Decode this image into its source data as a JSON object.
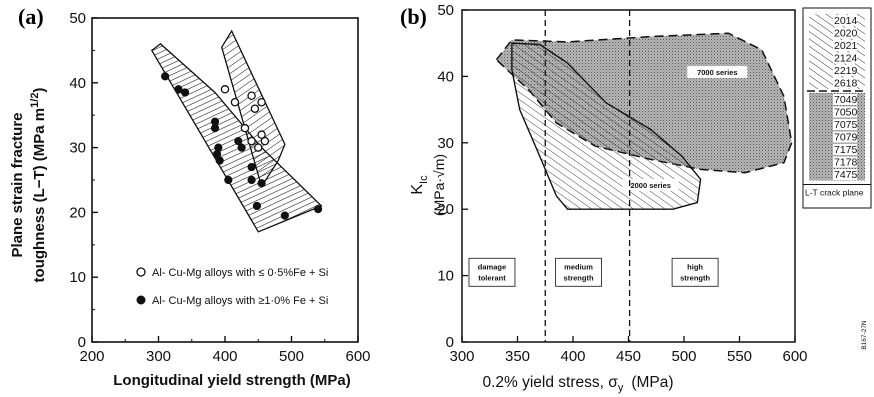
{
  "panel_labels": {
    "a": "(a)",
    "b": "(b)"
  },
  "chart_data": [
    {
      "type": "scatter",
      "xlabel": "Longitudinal yield strength (MPa)",
      "ylabel_line1": "Plane strain fracture",
      "ylabel_line2": "toughness (L−T) (MPa m",
      "ylabel_exp": "1/2",
      "ylabel_close": ")",
      "xlim": [
        200,
        600
      ],
      "ylim": [
        0,
        50
      ],
      "xticks": [
        "200",
        "300",
        "400",
        "500",
        "600"
      ],
      "yticks": [
        "0",
        "10",
        "20",
        "30",
        "40",
        "50"
      ],
      "series": [
        {
          "name": "Al- Cu-Mg alloys with ≤ 0·5%Fe + Si",
          "marker": "open",
          "points": [
            [
              400,
              39
            ],
            [
              415,
              37
            ],
            [
              440,
              38
            ],
            [
              445,
              36
            ],
            [
              455,
              37
            ],
            [
              430,
              33
            ],
            [
              440,
              31
            ],
            [
              450,
              30
            ],
            [
              455,
              32
            ],
            [
              460,
              31
            ]
          ]
        },
        {
          "name": "Al- Cu-Mg alloys with ≥1·0% Fe + Si",
          "marker": "filled",
          "points": [
            [
              310,
              41
            ],
            [
              330,
              39
            ],
            [
              340,
              38.5
            ],
            [
              385,
              34
            ],
            [
              385,
              33
            ],
            [
              390,
              30
            ],
            [
              388,
              29
            ],
            [
              392,
              28
            ],
            [
              420,
              31
            ],
            [
              425,
              30
            ],
            [
              405,
              25
            ],
            [
              440,
              27
            ],
            [
              440,
              25
            ],
            [
              455,
              24.5
            ],
            [
              448,
              21
            ],
            [
              490,
              19.5
            ],
            [
              540,
              20.5
            ]
          ]
        }
      ],
      "bands": [
        {
          "name": "low Fe+Si band",
          "polygon": [
            [
              395,
              45.5
            ],
            [
              410,
              48
            ],
            [
              490,
              30.5
            ],
            [
              480,
              28
            ],
            [
              455,
              24
            ]
          ]
        },
        {
          "name": "high Fe+Si band",
          "polygon": [
            [
              290,
              45
            ],
            [
              303,
              46
            ],
            [
              385,
              38.5
            ],
            [
              455,
              30
            ],
            [
              545,
              21
            ],
            [
              450,
              17
            ],
            [
              290,
              45
            ]
          ]
        }
      ]
    },
    {
      "type": "area",
      "xlabel": "0.2% yield stress, σ",
      "xlabel_sub": "y",
      "xlabel_units": "(MPa)",
      "ylabel_main": "K",
      "ylabel_sub": "Ic",
      "ylabel_units": "(MPa·√m)",
      "xlim": [
        300,
        600
      ],
      "ylim": [
        0,
        50
      ],
      "xticks": [
        "300",
        "350",
        "400",
        "450",
        "500",
        "550",
        "600"
      ],
      "yticks": [
        "0",
        "10",
        "20",
        "30",
        "40",
        "50"
      ],
      "regions": [
        {
          "name": "7000 series",
          "fill": "dotted",
          "polygon": [
            [
              331,
              42.5
            ],
            [
              345,
              45.5
            ],
            [
              395,
              45.2
            ],
            [
              470,
              46
            ],
            [
              540,
              46.5
            ],
            [
              570,
              44
            ],
            [
              590,
              37
            ],
            [
              597,
              30
            ],
            [
              590,
              27
            ],
            [
              555,
              25.5
            ],
            [
              515,
              26
            ],
            [
              470,
              27.5
            ],
            [
              420,
              29.5
            ],
            [
              385,
              33
            ],
            [
              360,
              38
            ],
            [
              331,
              42.5
            ]
          ]
        },
        {
          "name": "2000 series",
          "fill": "hatched",
          "polygon": [
            [
              345,
              45
            ],
            [
              370,
              44.8
            ],
            [
              395,
              42
            ],
            [
              430,
              36
            ],
            [
              470,
              32
            ],
            [
              498,
              28
            ],
            [
              515,
              24.5
            ],
            [
              512,
              21
            ],
            [
              490,
              20
            ],
            [
              440,
              20
            ],
            [
              395,
              20
            ],
            [
              385,
              22
            ],
            [
              370,
              28
            ],
            [
              352,
              35
            ],
            [
              345,
              41
            ],
            [
              345,
              45
            ]
          ]
        }
      ],
      "vlines": [
        375,
        451
      ],
      "zones": [
        "damage tolerant",
        "medium strength",
        "high strength"
      ],
      "side_note": "B167-27N",
      "legend": {
        "group_2000": [
          "2014",
          "2020",
          "2021",
          "2124",
          "2219",
          "2618"
        ],
        "group_7000": [
          "7049",
          "7050",
          "7075",
          "7079",
          "7175",
          "7178",
          "7475"
        ],
        "footer": "L-T crack plane"
      }
    }
  ]
}
